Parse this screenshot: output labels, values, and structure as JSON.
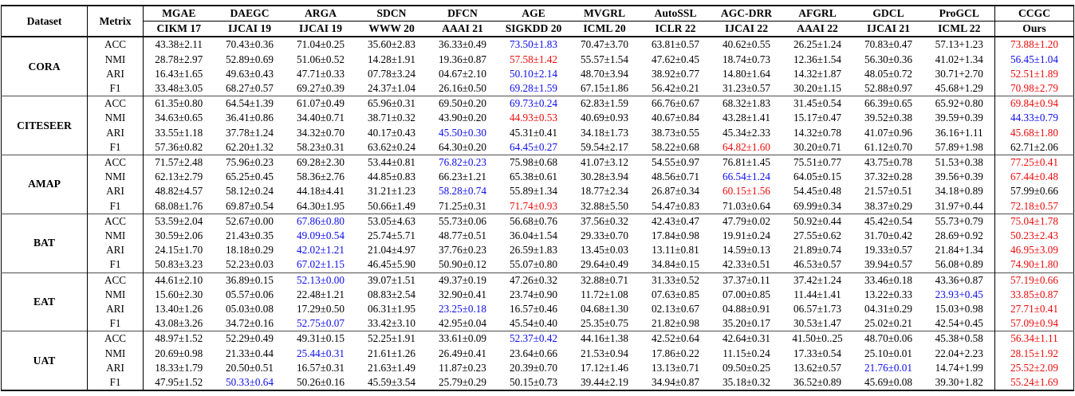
{
  "palette": {
    "k": "#000000",
    "b": "#0d0dee",
    "r": "#ee0a0a"
  },
  "table": {
    "header": {
      "dataset": "Dataset",
      "metric": "Metrix",
      "methods": [
        {
          "name": "MGAE",
          "venue": "CIKM 17"
        },
        {
          "name": "DAEGC",
          "venue": "IJCAI 19"
        },
        {
          "name": "ARGA",
          "venue": "IJCAI 19"
        },
        {
          "name": "SDCN",
          "venue": "WWW 20"
        },
        {
          "name": "DFCN",
          "venue": "AAAI 21"
        },
        {
          "name": "AGE",
          "venue": "SIGKDD 20"
        },
        {
          "name": "MVGRL",
          "venue": "ICML 20"
        },
        {
          "name": "AutoSSL",
          "venue": "ICLR 22"
        },
        {
          "name": "AGC-DRR",
          "venue": "IJCAI 22"
        },
        {
          "name": "AFGRL",
          "venue": "AAAI 22"
        },
        {
          "name": "GDCL",
          "venue": "IJCAI 21"
        },
        {
          "name": "ProGCL",
          "venue": "ICML 22"
        }
      ],
      "ours": {
        "name": "CCGC",
        "venue": "Ours"
      }
    },
    "groups": [
      {
        "dataset": "CORA",
        "rows": [
          {
            "metric": "ACC",
            "values": [
              "43.38±2.11",
              "70.43±0.36",
              "71.04±0.25",
              "35.60±2.83",
              "36.33±0.49",
              "73.50±1.83",
              "70.47±3.70",
              "63.81±0.57",
              "40.62±0.55",
              "26.25±1.24",
              "70.83±0.47",
              "57.13+1.23"
            ],
            "colors": [
              "k",
              "k",
              "k",
              "k",
              "k",
              "b",
              "k",
              "k",
              "k",
              "k",
              "k",
              "k"
            ],
            "ours": "73.88±1.20",
            "ours_color": "r"
          },
          {
            "metric": "NMI",
            "values": [
              "28.78±2.97",
              "52.89±0.69",
              "51.06±0.52",
              "14.28±1.91",
              "19.36±0.87",
              "57.58±1.42",
              "55.57±1.54",
              "47.62±0.45",
              "18.74±0.73",
              "12.36±1.54",
              "56.30±0.36",
              "41.02+1.34"
            ],
            "colors": [
              "k",
              "k",
              "k",
              "k",
              "k",
              "r",
              "k",
              "k",
              "k",
              "k",
              "k",
              "k"
            ],
            "ours": "56.45±1.04",
            "ours_color": "b"
          },
          {
            "metric": "ARI",
            "values": [
              "16.43±1.65",
              "49.63±0.43",
              "47.71±0.33",
              "07.78±3.24",
              "04.67±2.10",
              "50.10±2.14",
              "48.70±3.94",
              "38.92±0.77",
              "14.80±1.64",
              "14.32±1.87",
              "48.05±0.72",
              "30.71+2.70"
            ],
            "colors": [
              "k",
              "k",
              "k",
              "k",
              "k",
              "b",
              "k",
              "k",
              "k",
              "k",
              "k",
              "k"
            ],
            "ours": "52.51±1.89",
            "ours_color": "r"
          },
          {
            "metric": "F1",
            "values": [
              "33.48±3.05",
              "68.27±0.57",
              "69.27±0.39",
              "24.37±1.04",
              "26.16±0.50",
              "69.28±1.59",
              "67.15±1.86",
              "56.42±0.21",
              "31.23±0.57",
              "30.20±1.15",
              "52.88±0.97",
              "45.68+1.29"
            ],
            "colors": [
              "k",
              "k",
              "k",
              "k",
              "k",
              "b",
              "k",
              "k",
              "k",
              "k",
              "k",
              "k"
            ],
            "ours": "70.98±2.79",
            "ours_color": "r"
          }
        ]
      },
      {
        "dataset": "CITESEER",
        "rows": [
          {
            "metric": "ACC",
            "values": [
              "61.35±0.80",
              "64.54±1.39",
              "61.07±0.49",
              "65.96±0.31",
              "69.50±0.20",
              "69.73±0.24",
              "62.83±1.59",
              "66.76±0.67",
              "68.32±1.83",
              "31.45±0.54",
              "66.39±0.65",
              "65.92+0.80"
            ],
            "colors": [
              "k",
              "k",
              "k",
              "k",
              "k",
              "b",
              "k",
              "k",
              "k",
              "k",
              "k",
              "k"
            ],
            "ours": "69.84±0.94",
            "ours_color": "r"
          },
          {
            "metric": "NMI",
            "values": [
              "34.63±0.65",
              "36.41±0.86",
              "34.40±0.71",
              "38.71±0.32",
              "43.90±0.20",
              "44.93±0.53",
              "40.69±0.93",
              "40.67±0.84",
              "43.28±1.41",
              "15.17±0.47",
              "39.52±0.38",
              "39.59+0.39"
            ],
            "colors": [
              "k",
              "k",
              "k",
              "k",
              "k",
              "r",
              "k",
              "k",
              "k",
              "k",
              "k",
              "k"
            ],
            "ours": "44.33±0.79",
            "ours_color": "b"
          },
          {
            "metric": "ARI",
            "values": [
              "33.55±1.18",
              "37.78±1.24",
              "34.32±0.70",
              "40.17±0.43",
              "45.50±0.30",
              "45.31±0.41",
              "34.18±1.73",
              "38.73±0.55",
              "45.34±2.33",
              "14.32±0.78",
              "41.07±0.96",
              "36.16+1.11"
            ],
            "colors": [
              "k",
              "k",
              "k",
              "k",
              "b",
              "k",
              "k",
              "k",
              "k",
              "k",
              "k",
              "k"
            ],
            "ours": "45.68±1.80",
            "ours_color": "r"
          },
          {
            "metric": "F1",
            "values": [
              "57.36±0.82",
              "62.20±1.32",
              "58.23±0.31",
              "63.62±0.24",
              "64.30±0.20",
              "64.45±0.27",
              "59.54±2.17",
              "58.22±0.68",
              "64.82±1.60",
              "30.20±0.71",
              "61.12±0.70",
              "57.89+1.98"
            ],
            "colors": [
              "k",
              "k",
              "k",
              "k",
              "k",
              "b",
              "k",
              "k",
              "r",
              "k",
              "k",
              "k"
            ],
            "ours": "62.71±2.06",
            "ours_color": "k"
          }
        ]
      },
      {
        "dataset": "AMAP",
        "rows": [
          {
            "metric": "ACC",
            "values": [
              "71.57±2.48",
              "75.96±0.23",
              "69.28±2.30",
              "53.44±0.81",
              "76.82±0.23",
              "75.98±0.68",
              "41.07±3.12",
              "54.55±0.97",
              "76.81±1.45",
              "75.51±0.77",
              "43.75±0.78",
              "51.53+0.38"
            ],
            "colors": [
              "k",
              "k",
              "k",
              "k",
              "b",
              "k",
              "k",
              "k",
              "k",
              "k",
              "k",
              "k"
            ],
            "ours": "77.25±0.41",
            "ours_color": "r"
          },
          {
            "metric": "NMI",
            "values": [
              "62.13±2.79",
              "65.25±0.45",
              "58.36±2.76",
              "44.85±0.83",
              "66.23±1.21",
              "65.38±0.61",
              "30.28±3.94",
              "48.56±0.71",
              "66.54±1.24",
              "64.05±0.15",
              "37.32±0.28",
              "39.56+0.39"
            ],
            "colors": [
              "k",
              "k",
              "k",
              "k",
              "k",
              "k",
              "k",
              "k",
              "b",
              "k",
              "k",
              "k"
            ],
            "ours": "67.44±0.48",
            "ours_color": "r"
          },
          {
            "metric": "ARI",
            "values": [
              "48.82±4.57",
              "58.12±0.24",
              "44.18±4.41",
              "31.21±1.23",
              "58.28±0.74",
              "55.89±1.34",
              "18.77±2.34",
              "26.87±0.34",
              "60.15±1.56",
              "54.45±0.48",
              "21.57±0.51",
              "34.18+0.89"
            ],
            "colors": [
              "k",
              "k",
              "k",
              "k",
              "b",
              "k",
              "k",
              "k",
              "r",
              "k",
              "k",
              "k"
            ],
            "ours": "57.99±0.66",
            "ours_color": "k"
          },
          {
            "metric": "F1",
            "values": [
              "68.08±1.76",
              "69.87±0.54",
              "64.30±1.95",
              "50.66±1.49",
              "71.25±0.31",
              "71.74±0.93",
              "32.88±5.50",
              "54.47±0.83",
              "71.03±0.64",
              "69.99±0.34",
              "38.37±0.29",
              "31.97+0.44"
            ],
            "colors": [
              "k",
              "k",
              "k",
              "k",
              "k",
              "r",
              "k",
              "k",
              "k",
              "k",
              "k",
              "k"
            ],
            "ours": "72.18±0.57",
            "ours_color": "r"
          }
        ]
      },
      {
        "dataset": "BAT",
        "rows": [
          {
            "metric": "ACC",
            "values": [
              "53.59±2.04",
              "52.67±0.00",
              "67.86±0.80",
              "53.05±4.63",
              "55.73±0.06",
              "56.68±0.76",
              "37.56±0.32",
              "42.43±0.47",
              "47.79±0.02",
              "50.92±0.44",
              "45.42±0.54",
              "55.73+0.79"
            ],
            "colors": [
              "k",
              "k",
              "b",
              "k",
              "k",
              "k",
              "k",
              "k",
              "k",
              "k",
              "k",
              "k"
            ],
            "ours": "75.04±1.78",
            "ours_color": "r"
          },
          {
            "metric": "NMI",
            "values": [
              "30.59±2.06",
              "21.43±0.35",
              "49.09±0.54",
              "25.74±5.71",
              "48.77±0.51",
              "36.04±1.54",
              "29.33±0.70",
              "17.84±0.98",
              "19.91±0.24",
              "27.55±0.62",
              "31.70±0.42",
              "28.69+0.92"
            ],
            "colors": [
              "k",
              "k",
              "b",
              "k",
              "k",
              "k",
              "k",
              "k",
              "k",
              "k",
              "k",
              "k"
            ],
            "ours": "50.23±2.43",
            "ours_color": "r"
          },
          {
            "metric": "ARI",
            "values": [
              "24.15±1.70",
              "18.18±0.29",
              "42.02±1.21",
              "21.04±4.97",
              "37.76±0.23",
              "26.59±1.83",
              "13.45±0.03",
              "13.11±0.81",
              "14.59±0.13",
              "21.89±0.74",
              "19.33±0.57",
              "21.84+1.34"
            ],
            "colors": [
              "k",
              "k",
              "b",
              "k",
              "k",
              "k",
              "k",
              "k",
              "k",
              "k",
              "k",
              "k"
            ],
            "ours": "46.95±3.09",
            "ours_color": "r"
          },
          {
            "metric": "F1",
            "values": [
              "50.83±3.23",
              "52.23±0.03",
              "67.02±1.15",
              "46.45±5.90",
              "50.90±0.12",
              "55.07±0.80",
              "29.64±0.49",
              "34.84±0.15",
              "42.33±0.51",
              "46.53±0.57",
              "39.94±0.57",
              "56.08+0.89"
            ],
            "colors": [
              "k",
              "k",
              "b",
              "k",
              "k",
              "k",
              "k",
              "k",
              "k",
              "k",
              "k",
              "k"
            ],
            "ours": "74.90±1.80",
            "ours_color": "r"
          }
        ]
      },
      {
        "dataset": "EAT",
        "rows": [
          {
            "metric": "ACC",
            "values": [
              "44.61±2.10",
              "36.89±0.15",
              "52.13±0.00",
              "39.07±1.51",
              "49.37±0.19",
              "47.26±0.32",
              "32.88±0.71",
              "31.33±0.52",
              "37.37±0.11",
              "37.42±1.24",
              "33.46±0.18",
              "43.36+0.87"
            ],
            "colors": [
              "k",
              "k",
              "b",
              "k",
              "k",
              "k",
              "k",
              "k",
              "k",
              "k",
              "k",
              "k"
            ],
            "ours": "57.19±0.66",
            "ours_color": "r"
          },
          {
            "metric": "NMI",
            "values": [
              "15.60±2.30",
              "05.57±0.06",
              "22.48±1.21",
              "08.83±2.54",
              "32.90±0.41",
              "23.74±0.90",
              "11.72±1.08",
              "07.63±0.85",
              "07.00±0.85",
              "11.44±1.41",
              "13.22±0.33",
              "23.93+0.45"
            ],
            "colors": [
              "k",
              "k",
              "k",
              "k",
              "k",
              "k",
              "k",
              "k",
              "k",
              "k",
              "k",
              "b"
            ],
            "ours": "33.85±0.87",
            "ours_color": "r"
          },
          {
            "metric": "ARI",
            "values": [
              "13.40±1.26",
              "05.03±0.08",
              "17.29±0.50",
              "06.31±1.95",
              "23.25±0.18",
              "16.57±0.46",
              "04.68±1.30",
              "02.13±0.67",
              "04.88±0.91",
              "06.57±1.73",
              "04.31±0.29",
              "15.03+0.98"
            ],
            "colors": [
              "k",
              "k",
              "k",
              "k",
              "b",
              "k",
              "k",
              "k",
              "k",
              "k",
              "k",
              "k"
            ],
            "ours": "27.71±0.41",
            "ours_color": "r"
          },
          {
            "metric": "F1",
            "values": [
              "43.08±3.26",
              "34.72±0.16",
              "52.75±0.07",
              "33.42±3.10",
              "42.95±0.04",
              "45.54±0.40",
              "25.35±0.75",
              "21.82±0.98",
              "35.20±0.17",
              "30.53±1.47",
              "25.02±0.21",
              "42.54+0.45"
            ],
            "colors": [
              "k",
              "k",
              "b",
              "k",
              "k",
              "k",
              "k",
              "k",
              "k",
              "k",
              "k",
              "k"
            ],
            "ours": "57.09±0.94",
            "ours_color": "r"
          }
        ]
      },
      {
        "dataset": "UAT",
        "rows": [
          {
            "metric": "ACC",
            "values": [
              "48.97±1.52",
              "52.29±0.49",
              "49.31±0.15",
              "52.25±1.91",
              "33.61±0.09",
              "52.37±0.42",
              "44.16±1.38",
              "42.52±0.64",
              "42.64±0.31",
              "41.50±0..25",
              "48.70±0.06",
              "45.38+0.58"
            ],
            "colors": [
              "k",
              "k",
              "k",
              "k",
              "k",
              "b",
              "k",
              "k",
              "k",
              "k",
              "k",
              "k"
            ],
            "ours": "56.34±1.11",
            "ours_color": "r"
          },
          {
            "metric": "NMI",
            "values": [
              "20.69±0.98",
              "21.33±0.44",
              "25.44±0.31",
              "21.61±1.26",
              "26.49±0.41",
              "23.64±0.66",
              "21.53±0.94",
              "17.86±0.22",
              "11.15±0.24",
              "17.33±0.54",
              "25.10±0.01",
              "22.04+2.23"
            ],
            "colors": [
              "k",
              "k",
              "b",
              "k",
              "k",
              "k",
              "k",
              "k",
              "k",
              "k",
              "k",
              "k"
            ],
            "ours": "28.15±1.92",
            "ours_color": "r"
          },
          {
            "metric": "ARI",
            "values": [
              "18.33±1.79",
              "20.50±0.51",
              "16.57±0.31",
              "21.63±1.49",
              "11.87±0.23",
              "20.39±0.70",
              "17.12±1.46",
              "13.13±0.71",
              "09.50±0.25",
              "13.62±0.57",
              "21.76±0.01",
              "14.74+1.99"
            ],
            "colors": [
              "k",
              "k",
              "k",
              "k",
              "k",
              "k",
              "k",
              "k",
              "k",
              "k",
              "b",
              "k"
            ],
            "ours": "25.52±2.09",
            "ours_color": "r"
          },
          {
            "metric": "F1",
            "values": [
              "47.95±1.52",
              "50.33±0.64",
              "50.26±0.16",
              "45.59±3.54",
              "25.79±0.29",
              "50.15±0.73",
              "39.44±2.19",
              "34.94±0.87",
              "35.18±0.32",
              "36.52±0.89",
              "45.69±0.08",
              "39.30+1.82"
            ],
            "colors": [
              "k",
              "b",
              "k",
              "k",
              "k",
              "k",
              "k",
              "k",
              "k",
              "k",
              "k",
              "k"
            ],
            "ours": "55.24±1.69",
            "ours_color": "r"
          }
        ]
      }
    ]
  }
}
